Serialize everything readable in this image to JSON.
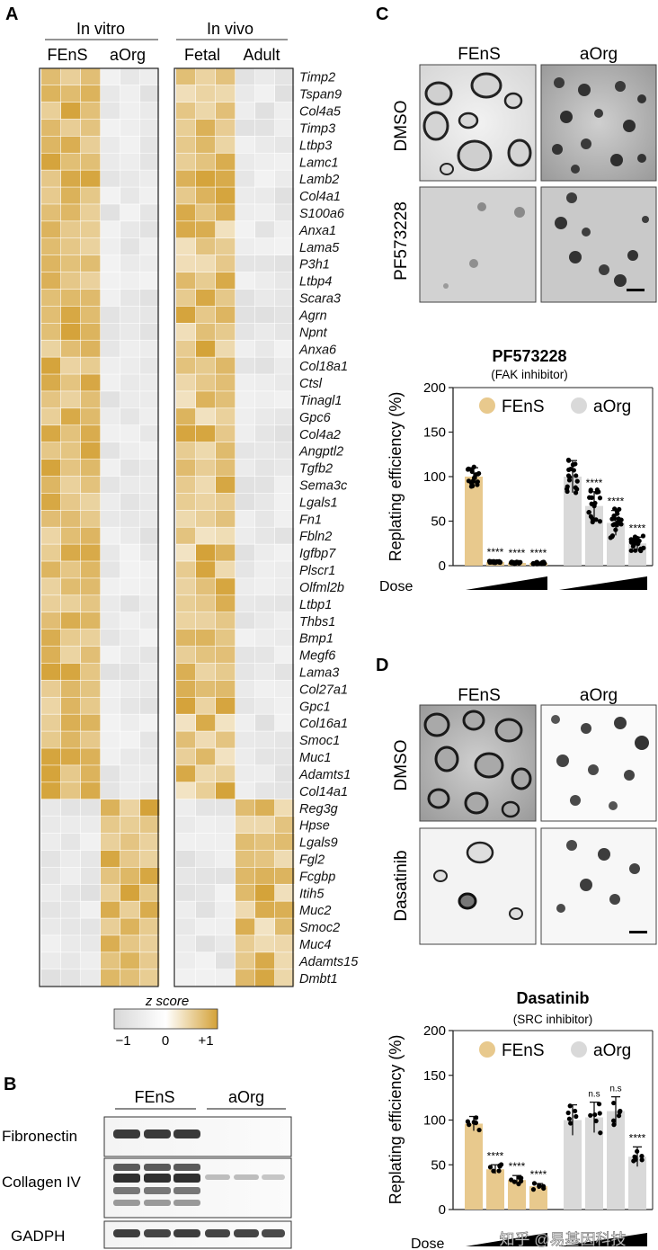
{
  "panel_a": {
    "letter": "A",
    "group_in_vitro": "In vitro",
    "group_in_vivo": "In vivo",
    "col_fens": "FEnS",
    "col_aorg": "aOrg",
    "col_fetal": "Fetal",
    "col_adult": "Adult",
    "genes": [
      "Timp2",
      "Tspan9",
      "Col4a5",
      "Timp3",
      "Ltbp3",
      "Lamc1",
      "Lamb2",
      "Col4a1",
      "S100a6",
      "Anxa1",
      "Lama5",
      "P3h1",
      "Ltbp4",
      "Scara3",
      "Agrn",
      "Npnt",
      "Anxa6",
      "Col18a1",
      "Ctsl",
      "Tinagl1",
      "Gpc6",
      "Col4a2",
      "Angptl2",
      "Tgfb2",
      "Sema3c",
      "Lgals1",
      "Fn1",
      "Fbln2",
      "Igfbp7",
      "Plscr1",
      "Olfml2b",
      "Ltbp1",
      "Thbs1",
      "Bmp1",
      "Megf6",
      "Lama3",
      "Col27a1",
      "Gpc1",
      "Col16a1",
      "Smoc1",
      "Muc1",
      "Adamts1",
      "Col14a1",
      "Reg3g",
      "Hpse",
      "Lgals9",
      "Fgl2",
      "Fcgbp",
      "Itih5",
      "Muc2",
      "Smoc2",
      "Muc4",
      "Adamts15",
      "Dmbt1"
    ],
    "n_up_fens": 43,
    "colorbar_title": "z score",
    "colorbar_ticks": [
      "−1",
      "0",
      "+1"
    ],
    "colors": {
      "low": "#dadada",
      "mid": "#ffffff",
      "high": "#d4a238"
    }
  },
  "panel_b": {
    "letter": "B",
    "col_fens": "FEnS",
    "col_aorg": "aOrg",
    "bands": [
      "Fibronectin",
      "Collagen IV",
      "GADPH"
    ]
  },
  "panel_c": {
    "letter": "C",
    "col_fens": "FEnS",
    "col_aorg": "aOrg",
    "row_dmso": "DMSO",
    "row_drug": "PF573228",
    "chart_title": "PF573228",
    "chart_subtitle": "(FAK inhibitor)",
    "legend_fens": "FEnS",
    "legend_aorg": "aOrg",
    "dose_label": "Dose",
    "chart_data": {
      "type": "bar",
      "ylabel": "Replating efficiency (%)",
      "ylim": [
        0,
        200
      ],
      "yticks": [
        "0",
        "50",
        "100",
        "150",
        "200"
      ],
      "series": [
        {
          "name": "FEnS",
          "values": [
            100,
            4,
            3,
            3
          ],
          "sd": [
            10,
            1,
            1,
            1
          ]
        },
        {
          "name": "aOrg",
          "values": [
            100,
            67,
            48,
            25
          ],
          "sd": [
            18,
            16,
            14,
            7
          ]
        }
      ],
      "significance": [
        [
          "",
          "****",
          "****",
          "****"
        ],
        [
          "",
          "****",
          "****",
          "****"
        ]
      ],
      "colors": {
        "FEnS": "#e8c98d",
        "aOrg": "#d9d9d9"
      }
    }
  },
  "panel_d": {
    "letter": "D",
    "col_fens": "FEnS",
    "col_aorg": "aOrg",
    "row_dmso": "DMSO",
    "row_drug": "Dasatinib",
    "chart_title": "Dasatinib",
    "chart_subtitle": "(SRC inhibitor)",
    "legend_fens": "FEnS",
    "legend_aorg": "aOrg",
    "dose_label": "Dose",
    "watermark": "知乎 @易基因科技",
    "chart_data": {
      "type": "bar",
      "ylabel": "Replating efficiency (%)",
      "ylim": [
        0,
        200
      ],
      "yticks": [
        "0",
        "50",
        "100",
        "150",
        "200"
      ],
      "series": [
        {
          "name": "FEnS",
          "values": [
            96,
            45,
            33,
            26
          ],
          "sd": [
            8,
            5,
            5,
            3
          ]
        },
        {
          "name": "aOrg",
          "values": [
            100,
            103,
            110,
            59
          ],
          "sd": [
            17,
            17,
            16,
            11
          ]
        }
      ],
      "significance": [
        [
          "",
          "****",
          "****",
          "****"
        ],
        [
          "",
          "n.s",
          "n.s",
          "****"
        ]
      ],
      "colors": {
        "FEnS": "#e8c98d",
        "aOrg": "#d9d9d9"
      }
    }
  }
}
